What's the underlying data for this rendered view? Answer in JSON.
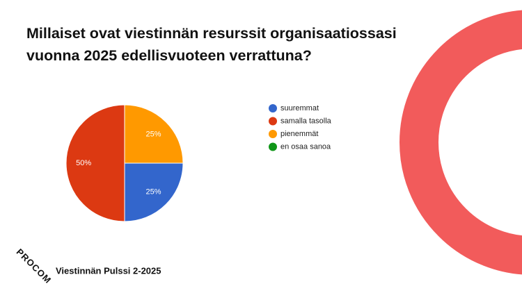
{
  "chart_data": {
    "type": "pie",
    "title": "Millaiset ovat viestinnän resurssit organisaatiossasi vuonna 2025 edellisvuoteen verrattuna?",
    "categories": [
      "suuremmat",
      "samalla tasolla",
      "pienemmät",
      "en osaa sanoa"
    ],
    "values": [
      25,
      50,
      25,
      0
    ],
    "value_labels": [
      "25%",
      "50%",
      "25%",
      null
    ],
    "colors": [
      "#3366cc",
      "#dc3912",
      "#ff9900",
      "#109618"
    ],
    "legend": "right"
  },
  "footer": {
    "logo": "PROCOM",
    "text": "Viestinnän Pulssi 2-2025"
  }
}
